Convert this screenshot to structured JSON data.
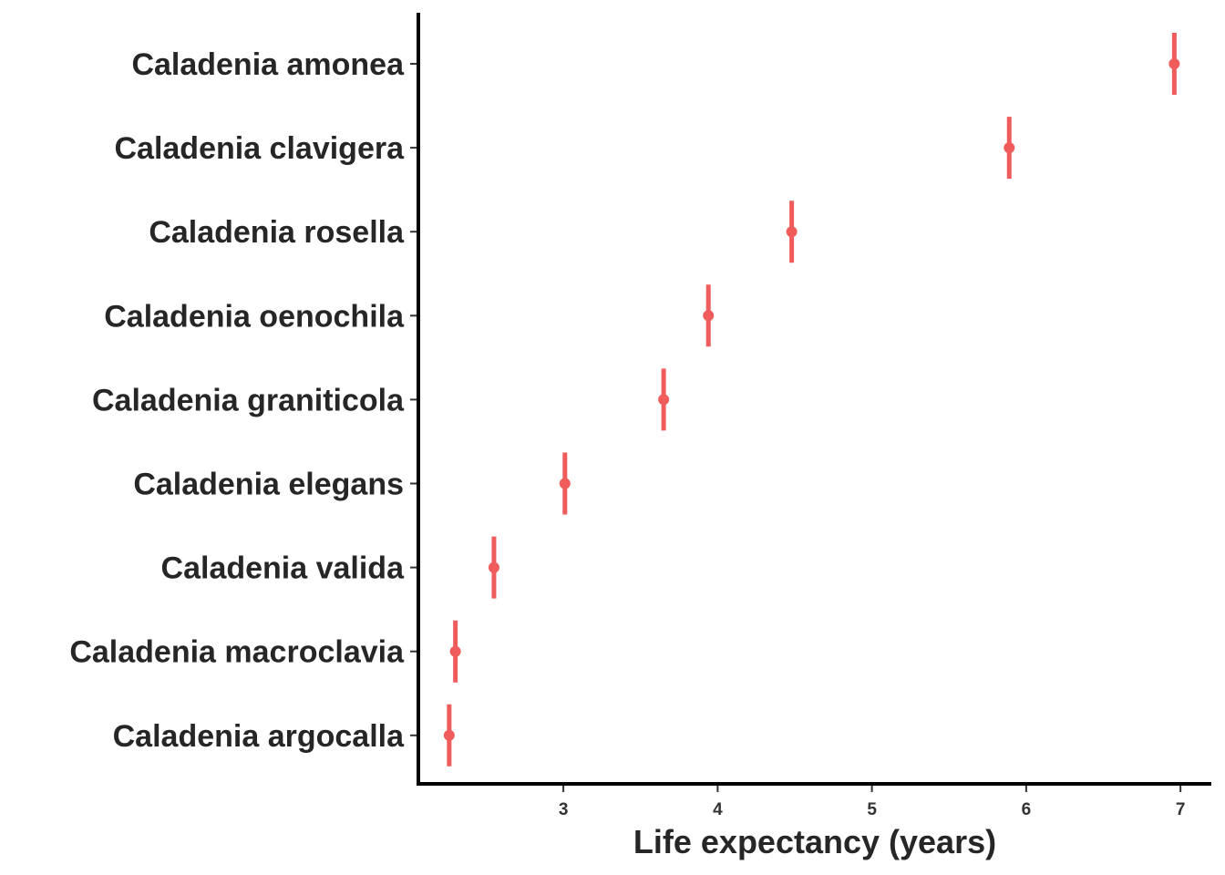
{
  "chart_data": {
    "type": "scatter",
    "title": "",
    "xlabel": "Life expectancy (years)",
    "ylabel": "",
    "xlim": [
      2.06,
      7.2
    ],
    "xticks": [
      "3",
      "4",
      "5",
      "6",
      "7"
    ],
    "grid": false,
    "legend": "none",
    "color": "#F05C5C",
    "categories": [
      "Caladenia amonea",
      "Caladenia clavigera",
      "Caladenia rosella",
      "Caladenia oenochila",
      "Caladenia graniticola",
      "Caladenia elegans",
      "Caladenia valida",
      "Caladenia macroclavia",
      "Caladenia argocalla"
    ],
    "points": [
      {
        "category": "Caladenia amonea",
        "value": 6.96,
        "lower": 6.95,
        "upper": 6.97
      },
      {
        "category": "Caladenia clavigera",
        "value": 5.89,
        "lower": 5.88,
        "upper": 5.9
      },
      {
        "category": "Caladenia rosella",
        "value": 4.48,
        "lower": 4.47,
        "upper": 4.49
      },
      {
        "category": "Caladenia oenochila",
        "value": 3.94,
        "lower": 3.93,
        "upper": 3.95
      },
      {
        "category": "Caladenia graniticola",
        "value": 3.65,
        "lower": 3.64,
        "upper": 3.66
      },
      {
        "category": "Caladenia elegans",
        "value": 3.01,
        "lower": 3.0,
        "upper": 3.02
      },
      {
        "category": "Caladenia valida",
        "value": 2.55,
        "lower": 2.54,
        "upper": 2.56
      },
      {
        "category": "Caladenia macroclavia",
        "value": 2.3,
        "lower": 2.29,
        "upper": 2.31
      },
      {
        "category": "Caladenia argocalla",
        "value": 2.26,
        "lower": 2.25,
        "upper": 2.27
      }
    ]
  }
}
